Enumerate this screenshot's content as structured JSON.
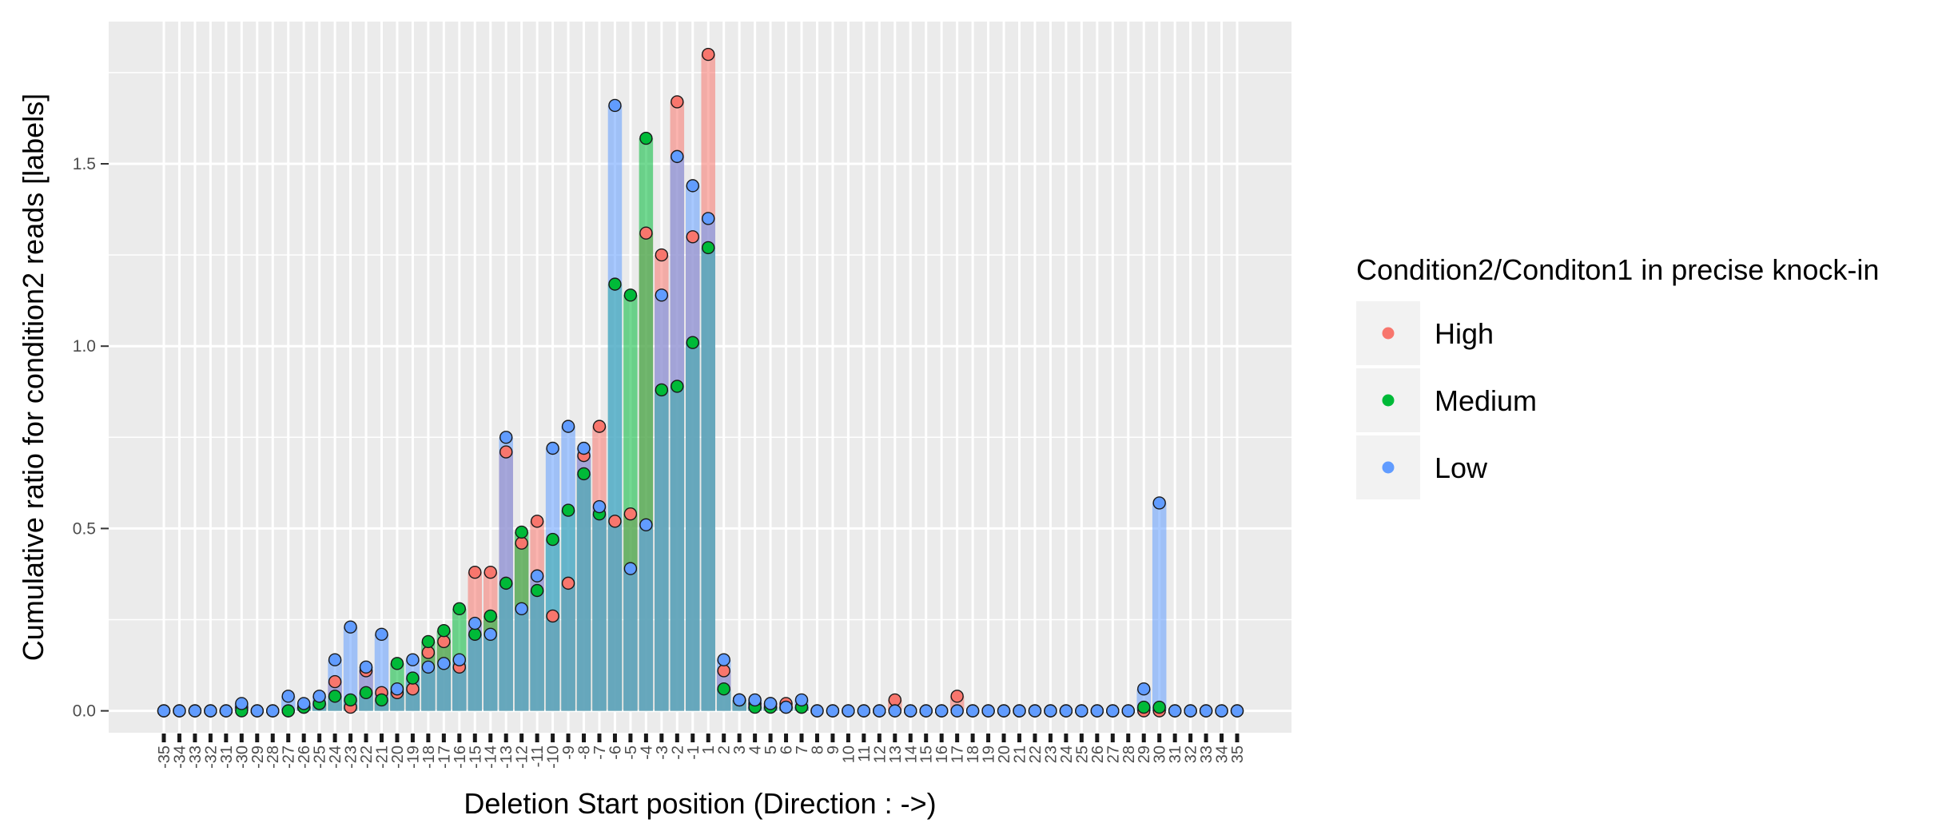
{
  "chart_data": {
    "type": "bar",
    "xlabel": "Deletion Start position (Direction : ->)",
    "ylabel": "Cumulative ratio for condition2 reads [labels]",
    "ylim": [
      -0.06,
      1.89
    ],
    "yticks": [
      0.0,
      0.5,
      1.0,
      1.5
    ],
    "ytick_labels": [
      "0.0",
      "0.5",
      "1.0",
      "1.5"
    ],
    "categories": [
      "-35",
      "-34",
      "-33",
      "-32",
      "-31",
      "-30",
      "-29",
      "-28",
      "-27",
      "-26",
      "-25",
      "-24",
      "-23",
      "-22",
      "-21",
      "-20",
      "-19",
      "-18",
      "-17",
      "-16",
      "-15",
      "-14",
      "-13",
      "-12",
      "-11",
      "-10",
      "-9",
      "-8",
      "-7",
      "-6",
      "-5",
      "-4",
      "-3",
      "-2",
      "-1",
      "1",
      "2",
      "3",
      "4",
      "5",
      "6",
      "7",
      "8",
      "9",
      "10",
      "11",
      "12",
      "13",
      "14",
      "15",
      "16",
      "17",
      "18",
      "19",
      "20",
      "21",
      "22",
      "23",
      "24",
      "25",
      "26",
      "27",
      "28",
      "29",
      "30",
      "31",
      "32",
      "33",
      "34",
      "35"
    ],
    "grid": true,
    "legend": {
      "title": "Condition2/Conditon1 in precise knock-in",
      "position": "right"
    },
    "series": [
      {
        "name": "High",
        "color": "#F8766D",
        "values": [
          0,
          0,
          0,
          0,
          0,
          0.01,
          0,
          0,
          0,
          0.01,
          0.02,
          0.08,
          0.01,
          0.11,
          0.05,
          0.05,
          0.06,
          0.16,
          0.19,
          0.12,
          0.38,
          0.38,
          0.71,
          0.46,
          0.52,
          0.26,
          0.35,
          0.7,
          0.78,
          0.52,
          0.54,
          1.31,
          1.25,
          1.67,
          1.3,
          1.8,
          0.11,
          0.03,
          0.02,
          0.02,
          0.02,
          0.01,
          0,
          0,
          0,
          0,
          0,
          0.03,
          0,
          0,
          0,
          0.04,
          0,
          0,
          0,
          0,
          0,
          0,
          0,
          0,
          0,
          0,
          0,
          0,
          0,
          0,
          0,
          0,
          0,
          0
        ]
      },
      {
        "name": "Medium",
        "color": "#00BA38",
        "values": [
          0,
          0,
          0,
          0,
          0,
          0,
          0,
          0,
          0,
          0.01,
          0.02,
          0.04,
          0.03,
          0.05,
          0.03,
          0.13,
          0.09,
          0.19,
          0.22,
          0.28,
          0.21,
          0.26,
          0.35,
          0.49,
          0.33,
          0.47,
          0.55,
          0.65,
          0.54,
          1.17,
          1.14,
          1.57,
          0.88,
          0.89,
          1.01,
          1.27,
          0.06,
          0.03,
          0.01,
          0.01,
          0.01,
          0.01,
          0,
          0,
          0,
          0,
          0,
          0,
          0,
          0,
          0,
          0,
          0,
          0,
          0,
          0,
          0,
          0,
          0,
          0,
          0,
          0,
          0,
          0.01,
          0.01,
          0,
          0,
          0,
          0,
          0
        ]
      },
      {
        "name": "Low",
        "color": "#619CFF",
        "values": [
          0,
          0,
          0,
          0,
          0,
          0.02,
          0,
          0,
          0.04,
          0.02,
          0.04,
          0.14,
          0.23,
          0.12,
          0.21,
          0.06,
          0.14,
          0.12,
          0.13,
          0.14,
          0.24,
          0.21,
          0.75,
          0.28,
          0.37,
          0.72,
          0.78,
          0.72,
          0.56,
          1.66,
          0.39,
          0.51,
          1.14,
          1.52,
          1.44,
          1.35,
          0.14,
          0.03,
          0.03,
          0.02,
          0.01,
          0.03,
          0,
          0,
          0,
          0,
          0,
          0,
          0,
          0,
          0,
          0,
          0,
          0,
          0,
          0,
          0,
          0,
          0,
          0,
          0,
          0,
          0,
          0.06,
          0.57,
          0,
          0,
          0,
          0,
          0
        ]
      }
    ]
  }
}
